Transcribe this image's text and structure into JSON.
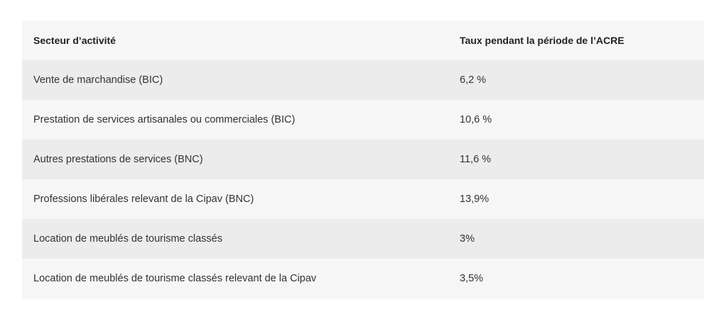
{
  "table": {
    "headers": [
      "Secteur d’activité",
      "Taux pendant la période de l’ACRE"
    ],
    "rows": [
      [
        "Vente de marchandise (BIC)",
        "6,2 %"
      ],
      [
        "Prestation de services artisanales ou commerciales (BIC)",
        "10,6 %"
      ],
      [
        "Autres prestations de services (BNC)",
        "11,6 %"
      ],
      [
        "Professions libérales relevant de la Cipav (BNC)",
        "13,9%"
      ],
      [
        "Location de meublés de tourisme classés",
        "3%"
      ],
      [
        "Location de meublés de tourisme classés relevant de la Cipav",
        "3,5%"
      ]
    ]
  },
  "colors": {
    "header_bg": "#f6f6f6",
    "row_odd_bg": "#ececec",
    "row_even_bg": "#f6f6f6",
    "text": "#333333"
  }
}
